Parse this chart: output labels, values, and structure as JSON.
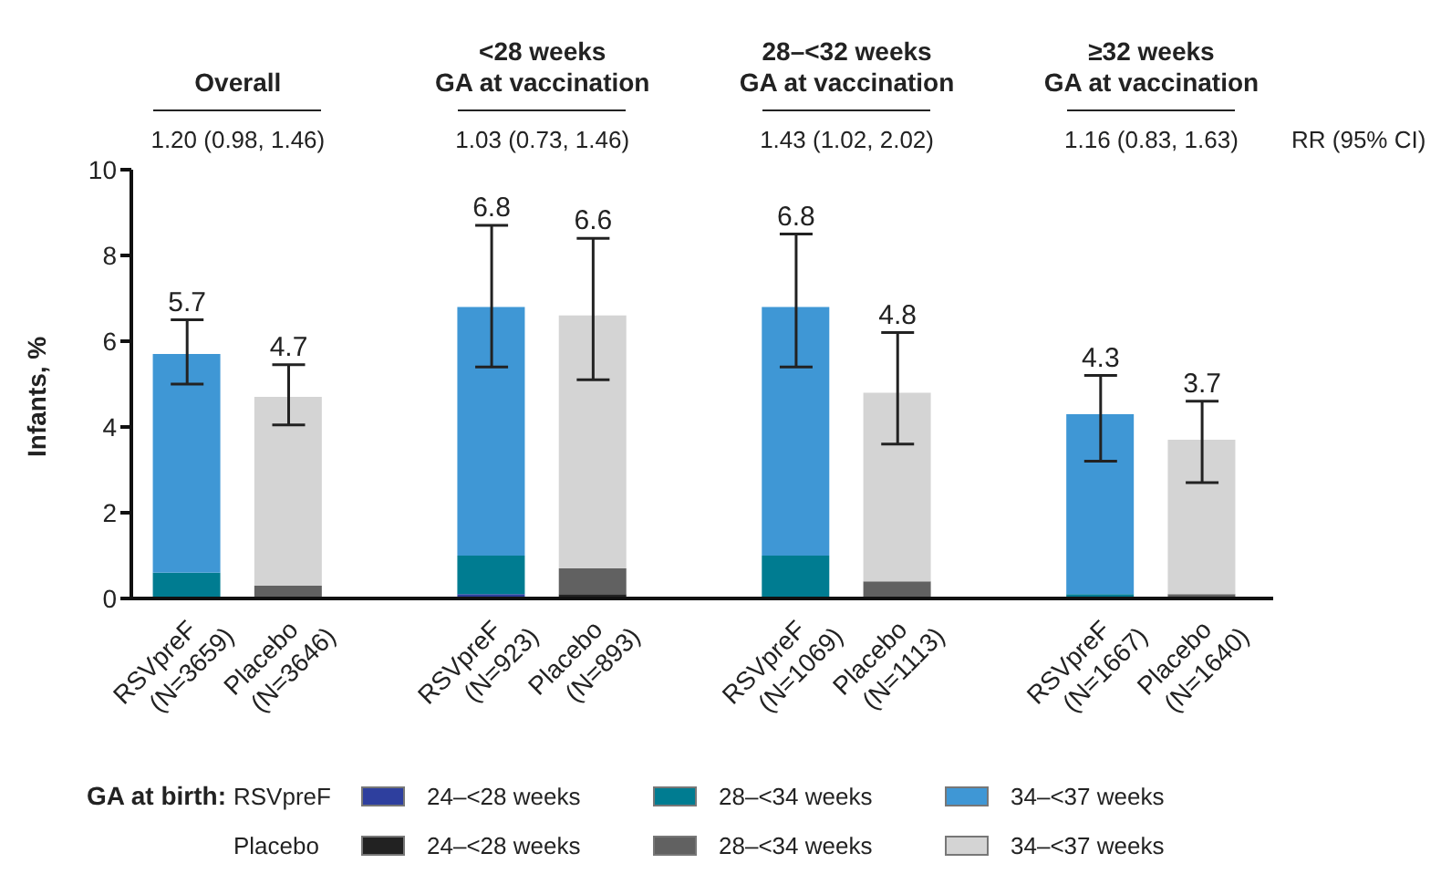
{
  "chart_data": {
    "type": "bar",
    "stacked": true,
    "ylabel": "Infants, %",
    "legend_title": "GA at birth:",
    "legend": "bottom",
    "categories": [
      "RSVpreF\n(N=3659)",
      "Placebo\n(N=3646)",
      "RSVpreF\n(N=923)",
      "Placebo\n(N=893)",
      "RSVpreF\n(N=1069)",
      "Placebo\n(N=1113)",
      "RSVpreF\n(N=1667)",
      "Placebo\n(N=1640)"
    ],
    "series": [
      {
        "name": "24–<28 weeks",
        "color": "#2e3f9e",
        "values": [
          0,
          null,
          0.1,
          null,
          0,
          null,
          0,
          null
        ]
      },
      {
        "name": "28–<34 weeks",
        "color": "#007c91",
        "values": [
          0.6,
          null,
          0.9,
          null,
          1.0,
          null,
          0.1,
          null
        ]
      },
      {
        "name": "34–<37 weeks",
        "color": "#3f97d5",
        "values": [
          5.1,
          null,
          5.8,
          null,
          5.8,
          null,
          4.2,
          null
        ],
        "errors": [
          [
            5.0,
            6.5
          ],
          null,
          [
            5.4,
            8.7
          ],
          null,
          [
            5.4,
            8.5
          ],
          null,
          [
            3.2,
            5.2
          ],
          null
        ]
      },
      {
        "name": "24–<28 weeks",
        "color": "#222222",
        "values": [
          null,
          0,
          null,
          0.1,
          null,
          0,
          null,
          0
        ]
      },
      {
        "name": "28–<34 weeks",
        "color": "#616161",
        "values": [
          null,
          0.3,
          null,
          0.6,
          null,
          0.4,
          null,
          0.1
        ]
      },
      {
        "name": "34–<37 weeks",
        "color": "#d4d4d4",
        "values": [
          null,
          4.4,
          null,
          5.9,
          null,
          4.4,
          null,
          3.6
        ],
        "errors": [
          null,
          [
            4.05,
            5.45
          ],
          null,
          [
            5.1,
            8.4
          ],
          null,
          [
            3.6,
            6.2
          ],
          null,
          [
            2.7,
            4.6
          ]
        ]
      }
    ],
    "totals": [
      "5.7",
      "4.7",
      "6.8",
      "6.6",
      "6.8",
      "4.8",
      "4.3",
      "3.7"
    ],
    "ylim": [
      0,
      10
    ],
    "yticks": [
      0,
      2,
      4,
      6,
      8,
      10
    ],
    "grid": false,
    "annotations": [
      "Overall",
      "<28 weeks\nGA at vaccination",
      "28–<32 weeks\nGA at vaccination",
      "≥32 weeks\nGA at vaccination",
      "1.20 (0.98, 1.46)",
      "1.03 (0.73, 1.46)",
      "1.43 (1.02, 2.02)",
      "1.16 (0.83, 1.63)",
      "RR (95% CI)",
      "RSVpreF",
      "Placebo"
    ]
  }
}
